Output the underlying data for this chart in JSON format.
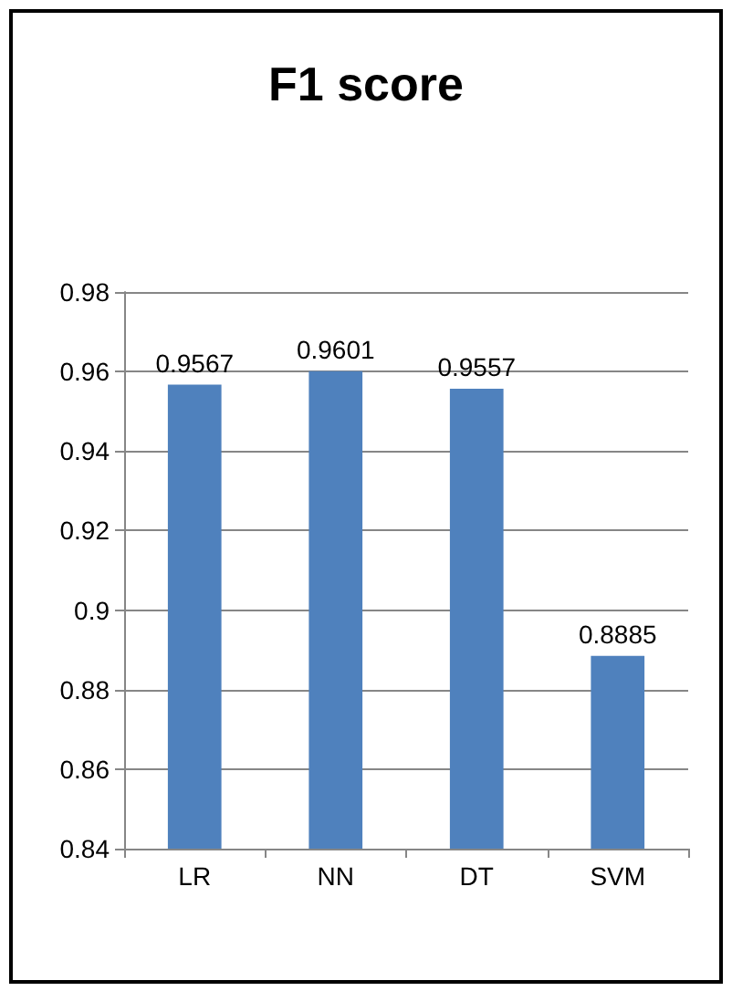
{
  "chart_data": {
    "type": "bar",
    "title": "F1 score",
    "categories": [
      "LR",
      "NN",
      "DT",
      "SVM"
    ],
    "values": [
      0.9567,
      0.9601,
      0.9557,
      0.8885
    ],
    "color": "#4f81bd",
    "ylim": [
      0.84,
      0.98
    ],
    "yticks": [
      0.84,
      0.86,
      0.88,
      0.9,
      0.92,
      0.94,
      0.96,
      0.98
    ],
    "grid": "y",
    "data_labels": true
  }
}
